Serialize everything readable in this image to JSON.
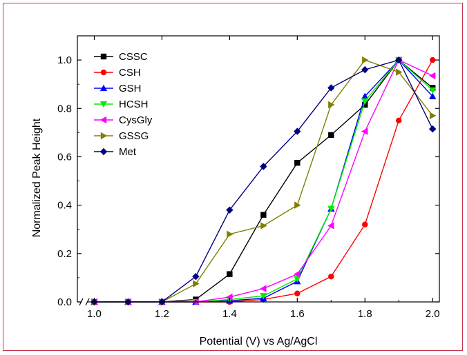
{
  "chart_data": {
    "type": "line",
    "title": "",
    "xlabel": "Potential (V) vs Ag/AgCl",
    "ylabel": "Normalized Peak Height",
    "xlim": [
      0.95,
      2.02
    ],
    "ylim": [
      0.0,
      1.1
    ],
    "axis_break": "x",
    "x_ticks": [
      1.0,
      1.2,
      1.4,
      1.6,
      1.8,
      2.0
    ],
    "x_tick_labels": [
      "1.0",
      "1.2",
      "1.4",
      "1.6",
      "1.8",
      "2.0"
    ],
    "y_ticks": [
      0.0,
      0.2,
      0.4,
      0.6,
      0.8,
      1.0
    ],
    "y_tick_labels": [
      "0.0",
      "0.2",
      "0.4",
      "0.6",
      "0.8",
      "1.0"
    ],
    "grid": false,
    "legend_position": "top-left",
    "x": [
      1.0,
      1.1,
      1.2,
      1.3,
      1.4,
      1.5,
      1.6,
      1.7,
      1.8,
      1.9,
      2.0
    ],
    "series": [
      {
        "name": "CSSC",
        "color": "#000000",
        "marker": "square",
        "values": [
          0.0,
          0.0,
          0.0,
          0.01,
          0.115,
          0.36,
          0.575,
          0.69,
          0.815,
          1.0,
          0.885
        ]
      },
      {
        "name": "CSH",
        "color": "#ff0000",
        "marker": "circle",
        "values": [
          0.0,
          0.0,
          0.0,
          0.0,
          0.0,
          0.01,
          0.035,
          0.105,
          0.32,
          0.75,
          1.0
        ]
      },
      {
        "name": "GSH",
        "color": "#0000ff",
        "marker": "triangle-up",
        "values": [
          0.0,
          0.0,
          0.0,
          0.0,
          0.005,
          0.015,
          0.085,
          0.385,
          0.85,
          1.0,
          0.85
        ]
      },
      {
        "name": "HCSH",
        "color": "#00ee00",
        "marker": "triangle-down",
        "values": [
          0.0,
          0.0,
          0.0,
          0.0,
          0.01,
          0.025,
          0.095,
          0.385,
          0.83,
          1.0,
          0.875
        ]
      },
      {
        "name": "CysGly",
        "color": "#ff00ff",
        "marker": "triangle-left",
        "values": [
          0.0,
          0.0,
          0.0,
          0.0,
          0.02,
          0.055,
          0.115,
          0.315,
          0.705,
          1.0,
          0.935
        ]
      },
      {
        "name": "GSSG",
        "color": "#808000",
        "marker": "triangle-right",
        "values": [
          0.0,
          0.0,
          0.0,
          0.075,
          0.28,
          0.315,
          0.4,
          0.815,
          1.0,
          0.95,
          0.77
        ]
      },
      {
        "name": "Met",
        "color": "#000080",
        "marker": "diamond",
        "values": [
          0.0,
          0.0,
          0.0,
          0.105,
          0.38,
          0.56,
          0.705,
          0.885,
          0.96,
          1.0,
          0.715
        ]
      }
    ]
  }
}
